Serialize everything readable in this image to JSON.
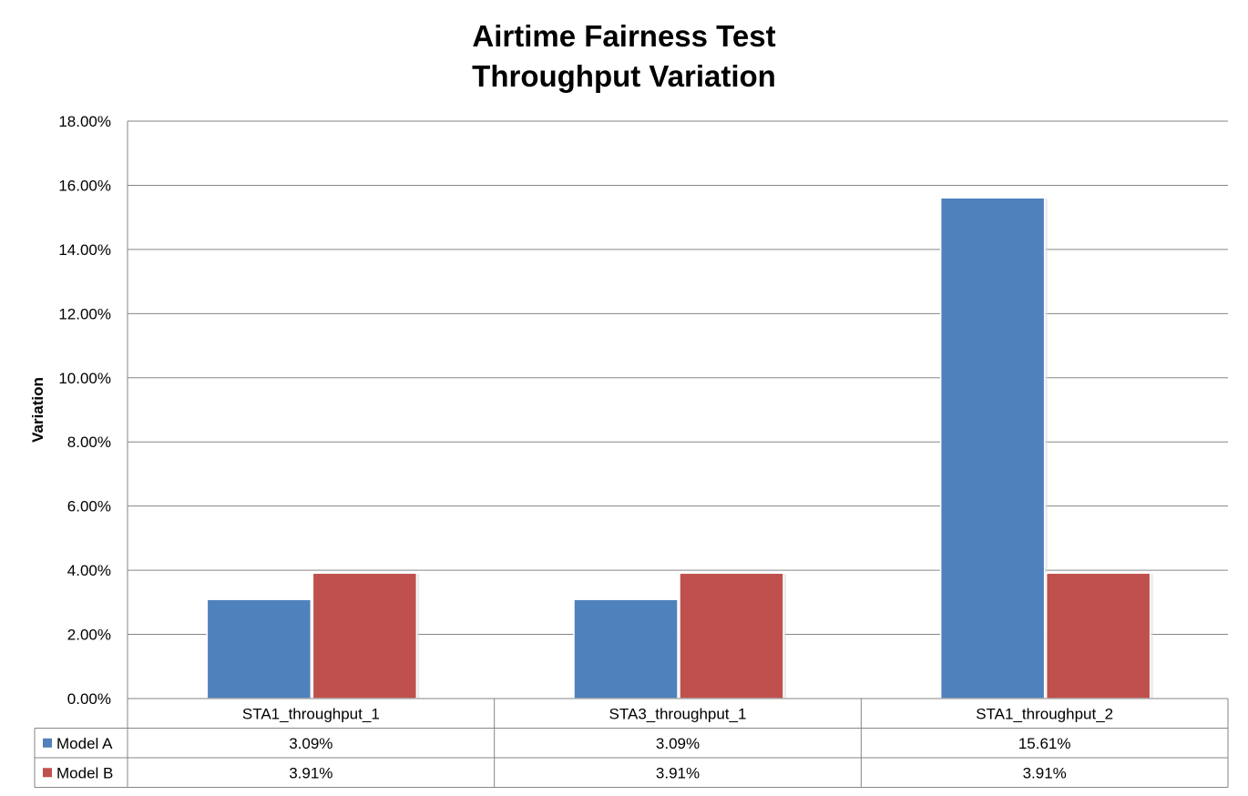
{
  "chart_data": {
    "type": "bar",
    "title": "Airtime Fairness Test",
    "subtitle": "Throughput Variation",
    "xlabel": "",
    "ylabel": "Variation",
    "ylim": [
      0,
      18
    ],
    "y_ticks": [
      "0.00%",
      "2.00%",
      "4.00%",
      "6.00%",
      "8.00%",
      "10.00%",
      "12.00%",
      "14.00%",
      "16.00%",
      "18.00%"
    ],
    "categories": [
      "STA1_throughput_1",
      "STA3_throughput_1",
      "STA1_throughput_2"
    ],
    "series": [
      {
        "name": "Model A",
        "color": "#4F81BD",
        "values": [
          3.09,
          3.09,
          15.61
        ],
        "labels": [
          "3.09%",
          "3.09%",
          "15.61%"
        ]
      },
      {
        "name": "Model B",
        "color": "#C0504D",
        "values": [
          3.91,
          3.91,
          3.91
        ],
        "labels": [
          "3.91%",
          "3.91%",
          "3.91%"
        ]
      }
    ],
    "grid": true,
    "legend": "data-table"
  }
}
